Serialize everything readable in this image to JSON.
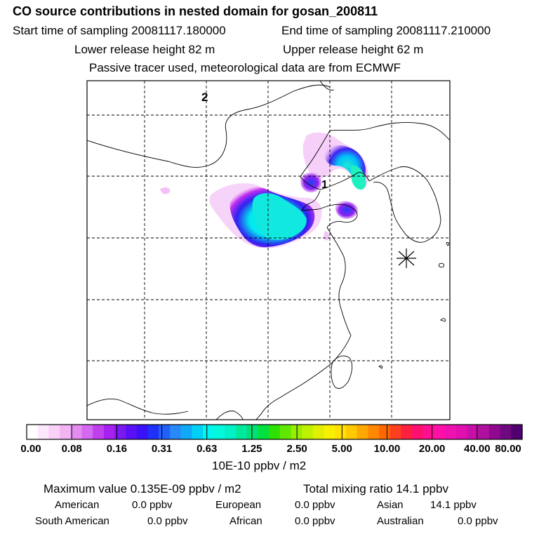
{
  "header": {
    "title": "CO  source contributions in nested domain for gosan_200811",
    "start_time": "Start time of sampling 20081117.180000",
    "end_time": "End time of sampling 20081117.210000",
    "lower_height": "Lower release height   82 m",
    "upper_height": "Upper release height   62 m",
    "tracer_info": "Passive tracer used, meteorological data are from ECMWF"
  },
  "map": {
    "markers": [
      "1",
      "2"
    ],
    "station_marker": "station-star-icon"
  },
  "colorbar": {
    "colors": [
      "#ffffff",
      "#fce8fc",
      "#f8d0f8",
      "#f2b4f4",
      "#e48cf0",
      "#d468f0",
      "#c040f0",
      "#a820f0",
      "#7a18f0",
      "#5a10f4",
      "#3a10f8",
      "#2030f8",
      "#2060f8",
      "#2888f8",
      "#10a8f8",
      "#00d0f4",
      "#00f4f0",
      "#00f8dc",
      "#00f0c8",
      "#00e89c",
      "#00e074",
      "#00e040",
      "#30e000",
      "#60e800",
      "#98ec00",
      "#c0f000",
      "#e0f000",
      "#f8f000",
      "#ffe000",
      "#ffc800",
      "#ffa800",
      "#ff8800",
      "#ff6800",
      "#ff4020",
      "#ff2040",
      "#ff1070",
      "#ff1090",
      "#ff10a8",
      "#f010b0",
      "#e010b0",
      "#c810a8",
      "#b010a0",
      "#900890",
      "#700880",
      "#500070"
    ],
    "labels": [
      "0.00",
      "0.08",
      "0.16",
      "0.31",
      "0.63",
      "1.25",
      "2.50",
      "5.00",
      "10.00",
      "20.00",
      "40.00",
      "80.00"
    ],
    "units": "10E-10 ppbv / m2"
  },
  "footer": {
    "max_value": "Maximum value  0.135E-09 ppbv / m2",
    "total_mixing": "Total mixing ratio       14.1 ppbv",
    "american_label": "American",
    "american_value": "0.0 ppbv",
    "european_label": "European",
    "european_value": "0.0 ppbv",
    "asian_label": "Asian",
    "asian_value": "14.1 ppbv",
    "south_american_label": "South American",
    "south_american_value": "0.0 ppbv",
    "african_label": "African",
    "african_value": "0.0 ppbv",
    "australian_label": "Australian",
    "australian_value": "0.0 ppbv"
  }
}
